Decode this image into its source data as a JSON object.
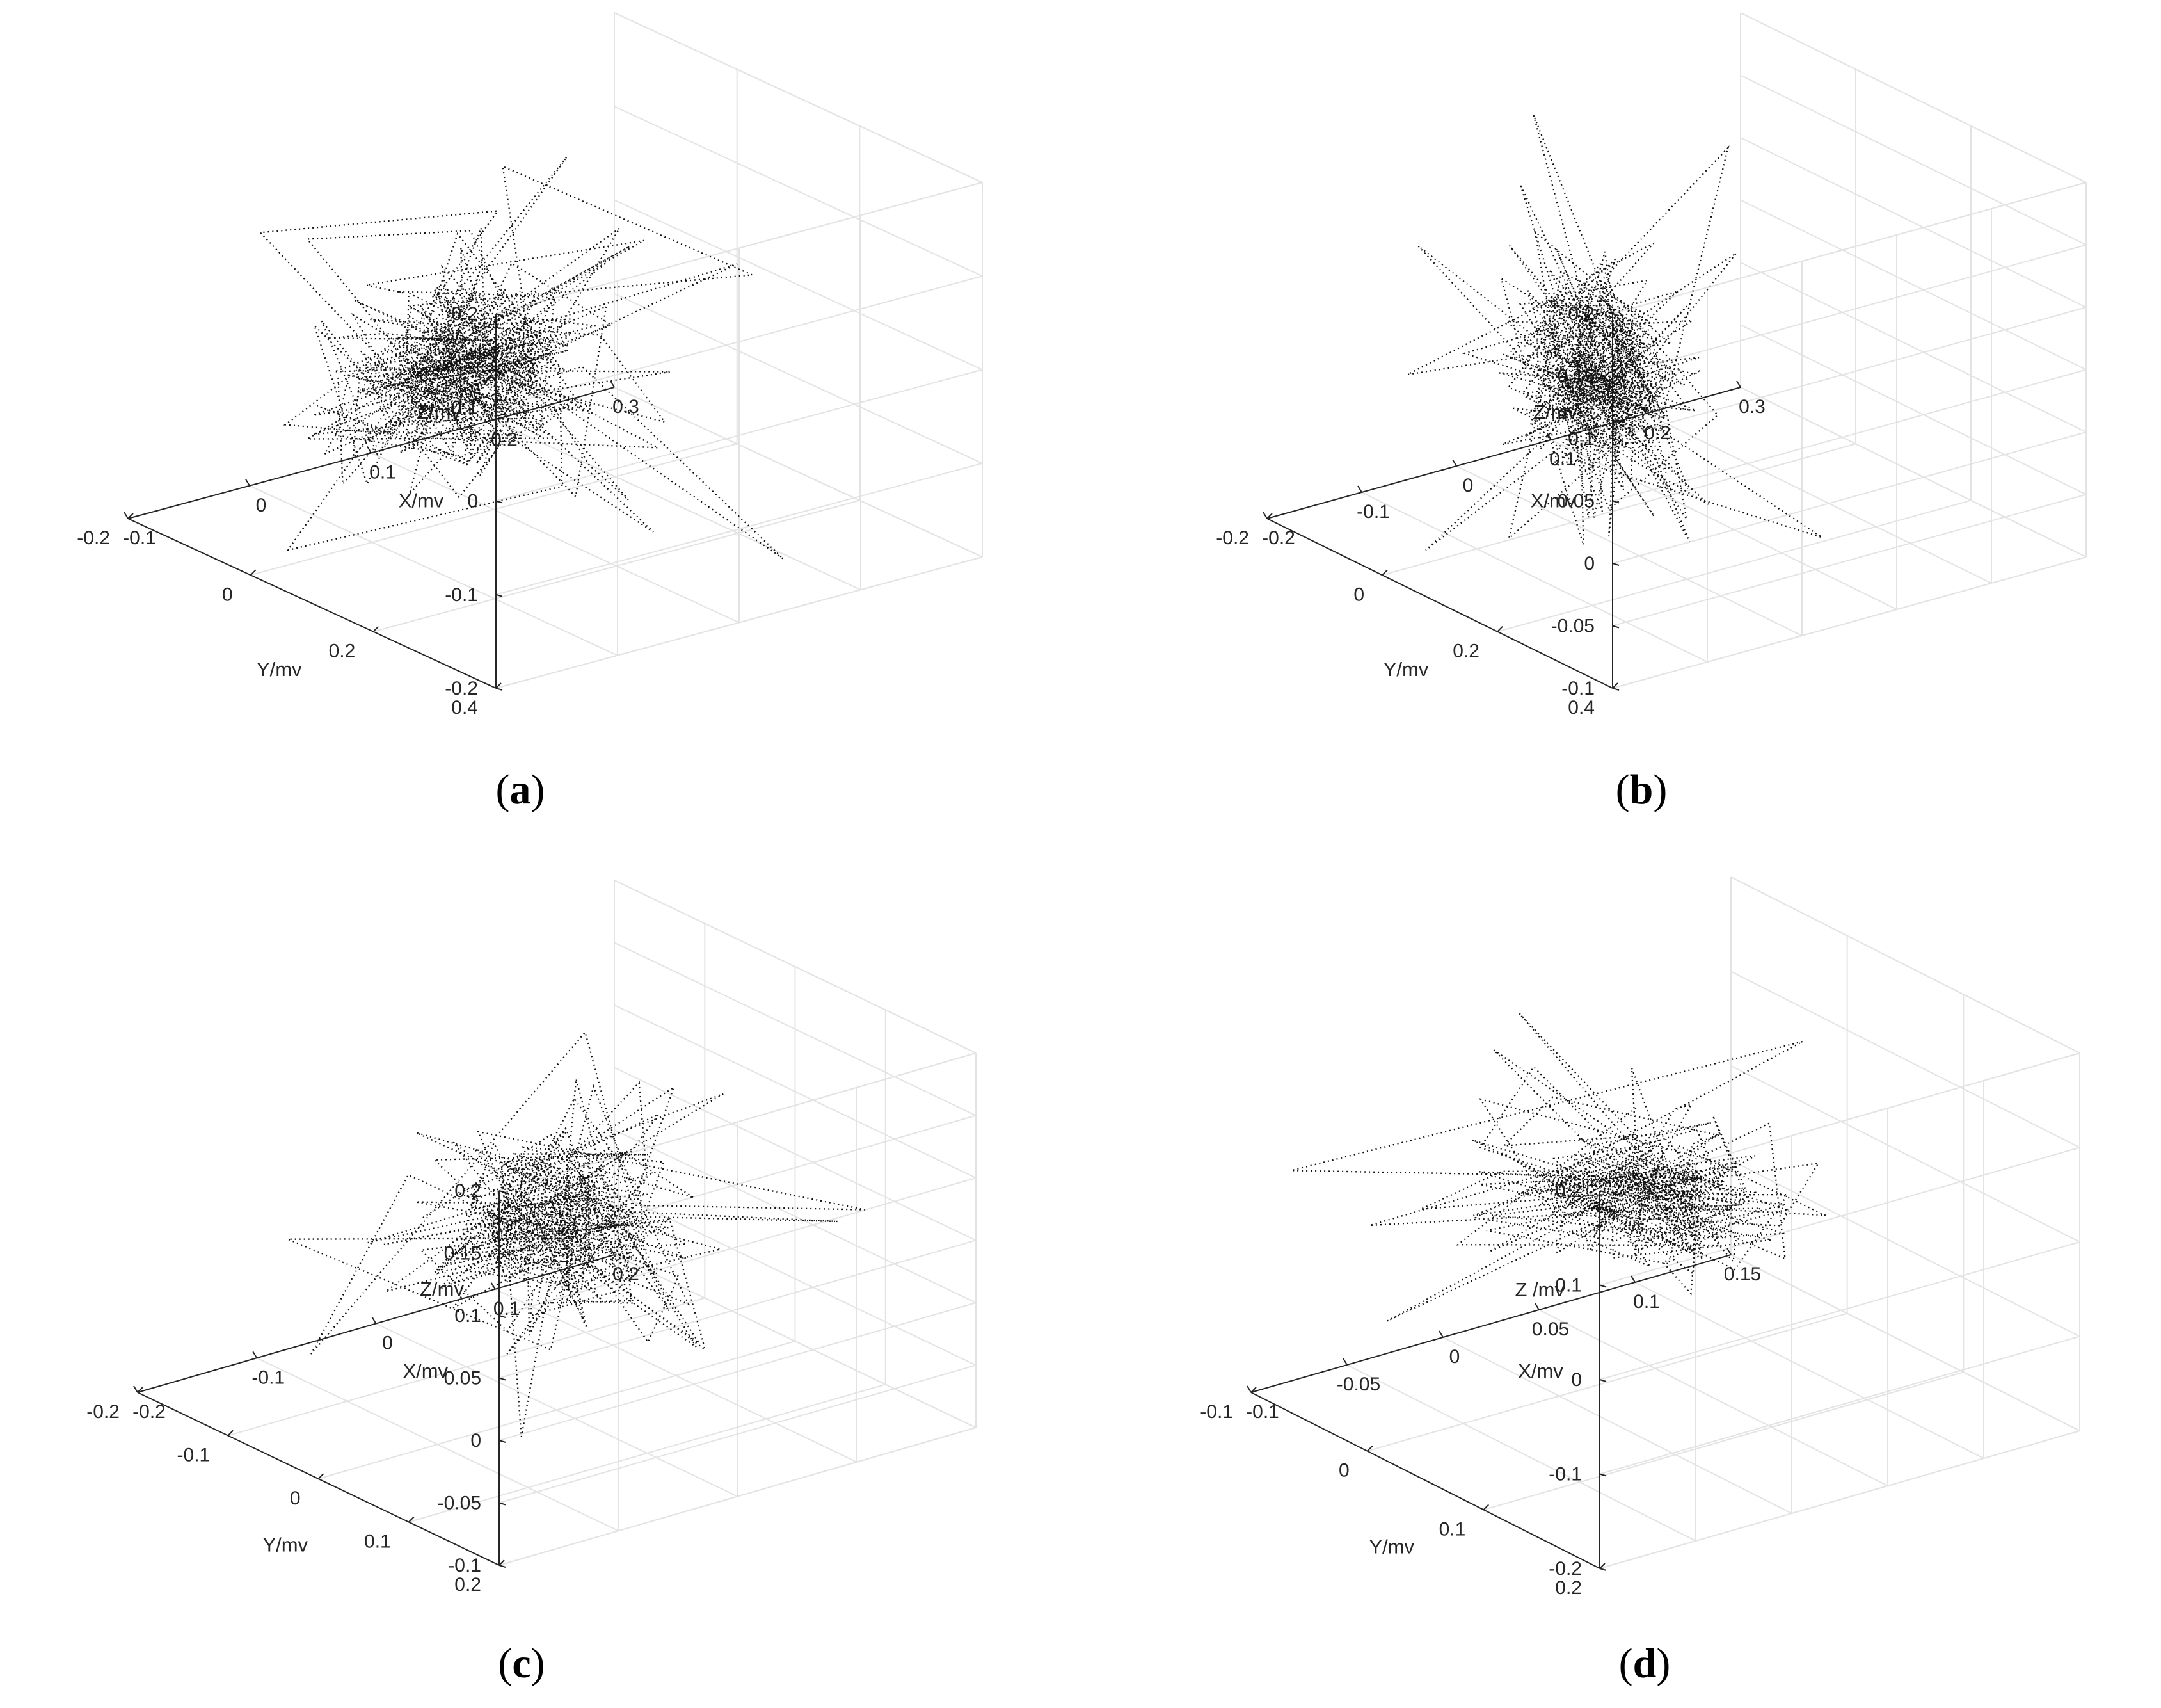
{
  "chart_data": [
    {
      "type": "line3d",
      "panel": "a",
      "caption_open": "(",
      "caption_letter": "a",
      "caption_close": ")",
      "xlabel": "X/mv",
      "ylabel": "Y/mv",
      "zlabel": "Z/mv",
      "xlim": [
        -0.1,
        0.3
      ],
      "ylim": [
        -0.2,
        0.4
      ],
      "zlim": [
        -0.2,
        0.2
      ],
      "xticks": [
        "-0.1",
        "0",
        "0.1",
        "0.2",
        "0.3"
      ],
      "yticks": [
        "-0.2",
        "0",
        "0.2",
        "0.4"
      ],
      "zticks": [
        "-0.2",
        "-0.1",
        "0",
        "0.1",
        "0.2"
      ],
      "trace": {
        "center": [
          0.03,
          0.08,
          0.0
        ],
        "spread": [
          0.06,
          0.09,
          0.06
        ],
        "segments": 320,
        "seed": 11
      },
      "grid": true
    },
    {
      "type": "line3d",
      "panel": "b",
      "caption_open": "(",
      "caption_letter": "b",
      "caption_close": ")",
      "xlabel": "X/mv",
      "ylabel": "Y/mv",
      "zlabel": "Z/mv",
      "xlim": [
        -0.2,
        0.3
      ],
      "ylim": [
        -0.2,
        0.4
      ],
      "zlim": [
        -0.1,
        0.2
      ],
      "xticks": [
        "-0.2",
        "-0.1",
        "0",
        "0.1",
        "0.2",
        "0.3"
      ],
      "yticks": [
        "-0.2",
        "0",
        "0.2",
        "0.4"
      ],
      "zticks": [
        "-0.1",
        "-0.05",
        "0",
        "0.05",
        "0.1",
        "0.15",
        "0.2"
      ],
      "trace": {
        "center": [
          0.02,
          0.02,
          0.02
        ],
        "spread": [
          0.05,
          0.07,
          0.05
        ],
        "segments": 300,
        "seed": 23
      },
      "grid": true
    },
    {
      "type": "line3d",
      "panel": "c",
      "caption_open": "(",
      "caption_letter": "c",
      "caption_close": ")",
      "xlabel": "X/mv",
      "ylabel": "Y/mv",
      "zlabel": "Z/mv",
      "xlim": [
        -0.2,
        0.2
      ],
      "ylim": [
        -0.2,
        0.2
      ],
      "zlim": [
        -0.1,
        0.2
      ],
      "xticks": [
        "-0.2",
        "-0.1",
        "0",
        "0.1",
        "0.2"
      ],
      "yticks": [
        "-0.2",
        "-0.1",
        "0",
        "0.1",
        "0.2"
      ],
      "zticks": [
        "-0.1",
        "-0.05",
        "0",
        "0.05",
        "0.1",
        "0.15",
        "0.2"
      ],
      "trace": {
        "center": [
          0.0,
          0.0,
          0.055
        ],
        "spread": [
          0.06,
          0.06,
          0.045
        ],
        "segments": 240,
        "seed": 37
      },
      "grid": true
    },
    {
      "type": "line3d",
      "panel": "d",
      "caption_open": "(",
      "caption_letter": "d",
      "caption_close": ")",
      "xlabel": "X/mv",
      "ylabel": "Y/mv",
      "zlabel": "Z /mv",
      "xlim": [
        -0.1,
        0.15
      ],
      "ylim": [
        -0.1,
        0.2
      ],
      "zlim": [
        -0.2,
        0.2
      ],
      "xticks": [
        "-0.1",
        "-0.05",
        "0",
        "0.05",
        "0.1",
        "0.15"
      ],
      "yticks": [
        "-0.1",
        "0",
        "0.1",
        "0.2"
      ],
      "zticks": [
        "-0.2",
        "-0.1",
        "0",
        "0.1",
        "0.2"
      ],
      "trace": {
        "center": [
          0.02,
          0.05,
          0.03
        ],
        "spread": [
          0.04,
          0.06,
          0.035
        ],
        "segments": 220,
        "seed": 53
      },
      "grid": true
    }
  ]
}
